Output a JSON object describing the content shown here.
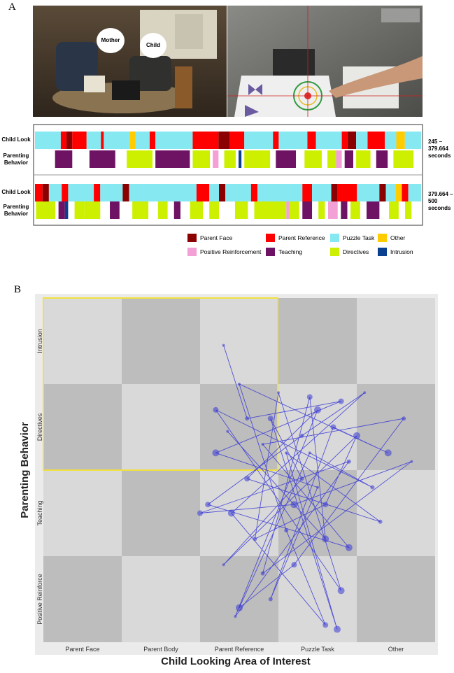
{
  "panel_a": {
    "label": "A",
    "photo": {
      "left_tags": [
        "Mother",
        "Child"
      ]
    },
    "row_labels": {
      "look": "Child Look",
      "behavior": "Parenting Behavior"
    },
    "rows": [
      {
        "range_label": "245 – 379.664 seconds",
        "start": 245,
        "end": 379.664,
        "look": [
          [
            245,
            254,
            2
          ],
          [
            254,
            256,
            1
          ],
          [
            256,
            258,
            0
          ],
          [
            258,
            263,
            1
          ],
          [
            263,
            268,
            2
          ],
          [
            268,
            269,
            1
          ],
          [
            269,
            278,
            2
          ],
          [
            278,
            280,
            3
          ],
          [
            280,
            285,
            2
          ],
          [
            285,
            287,
            1
          ],
          [
            287,
            300,
            2
          ],
          [
            300,
            309,
            1
          ],
          [
            309,
            313,
            0
          ],
          [
            313,
            318,
            1
          ],
          [
            318,
            328,
            2
          ],
          [
            328,
            330,
            1
          ],
          [
            330,
            340,
            2
          ],
          [
            340,
            343,
            1
          ],
          [
            343,
            352,
            2
          ],
          [
            352,
            354,
            1
          ],
          [
            354,
            357,
            0
          ],
          [
            357,
            361,
            2
          ],
          [
            361,
            367,
            1
          ],
          [
            367,
            371,
            2
          ],
          [
            371,
            374,
            3
          ],
          [
            374,
            379.664,
            2
          ]
        ],
        "behavior": [
          [
            252,
            258,
            5
          ],
          [
            264,
            273,
            5
          ],
          [
            277,
            286,
            6
          ],
          [
            287,
            299,
            5
          ],
          [
            300,
            306,
            6
          ],
          [
            307,
            309,
            4
          ],
          [
            311,
            315,
            6
          ],
          [
            316,
            317,
            7
          ],
          [
            318,
            327,
            6
          ],
          [
            329,
            336,
            5
          ],
          [
            339,
            345,
            6
          ],
          [
            347,
            350,
            6
          ],
          [
            350,
            352,
            4
          ],
          [
            353,
            356,
            5
          ],
          [
            357,
            362,
            6
          ],
          [
            364,
            368,
            5
          ],
          [
            370,
            377,
            6
          ]
        ]
      },
      {
        "range_label": "379.664 – 500 seconds",
        "start": 379.664,
        "end": 500,
        "look": [
          [
            379.664,
            382,
            1
          ],
          [
            382,
            384,
            0
          ],
          [
            384,
            388,
            2
          ],
          [
            388,
            390,
            1
          ],
          [
            390,
            398,
            2
          ],
          [
            398,
            400,
            1
          ],
          [
            400,
            407,
            2
          ],
          [
            407,
            409,
            0
          ],
          [
            409,
            430,
            2
          ],
          [
            430,
            434,
            1
          ],
          [
            434,
            437,
            2
          ],
          [
            437,
            439,
            0
          ],
          [
            439,
            447,
            2
          ],
          [
            447,
            449,
            1
          ],
          [
            449,
            463,
            2
          ],
          [
            463,
            466,
            1
          ],
          [
            466,
            472,
            2
          ],
          [
            472,
            474,
            0
          ],
          [
            474,
            480,
            1
          ],
          [
            480,
            487,
            2
          ],
          [
            487,
            489,
            0
          ],
          [
            489,
            492,
            2
          ],
          [
            492,
            494,
            3
          ],
          [
            494,
            496,
            1
          ],
          [
            496,
            500,
            2
          ]
        ],
        "behavior": [
          [
            380,
            386,
            6
          ],
          [
            387,
            389,
            5
          ],
          [
            389,
            390,
            7
          ],
          [
            392,
            395,
            6
          ],
          [
            395,
            400,
            6
          ],
          [
            403,
            406,
            5
          ],
          [
            410,
            415,
            6
          ],
          [
            418,
            421,
            6
          ],
          [
            423,
            425,
            5
          ],
          [
            428,
            432,
            6
          ],
          [
            434,
            437,
            6
          ],
          [
            442,
            446,
            6
          ],
          [
            448,
            454,
            6
          ],
          [
            454,
            458,
            6
          ],
          [
            458,
            459,
            4
          ],
          [
            459,
            462,
            6
          ],
          [
            463,
            466,
            5
          ],
          [
            468,
            470,
            6
          ],
          [
            471,
            474,
            4
          ],
          [
            475,
            477,
            5
          ],
          [
            478,
            481,
            6
          ],
          [
            483,
            487,
            5
          ],
          [
            490,
            493,
            6
          ],
          [
            495,
            497,
            6
          ]
        ]
      }
    ],
    "legend": [
      {
        "name": "Parent Face",
        "color": "#8b0000"
      },
      {
        "name": "Parent Reference",
        "color": "#ff0000"
      },
      {
        "name": "Puzzle Task",
        "color": "#86e9f2"
      },
      {
        "name": "Other",
        "color": "#ffcc00"
      },
      {
        "name": "Positive Reinforcement",
        "color": "#f2a0d6"
      },
      {
        "name": "Teaching",
        "color": "#6e1263"
      },
      {
        "name": "Directives",
        "color": "#ccf000"
      },
      {
        "name": "Intrusion",
        "color": "#0b3f8f"
      }
    ]
  },
  "panel_b": {
    "label": "B",
    "x_title": "Child Looking Area of Interest",
    "y_title": "Parenting Behavior",
    "x_categories": [
      "Parent Face",
      "Parent Body",
      "Parent Reference",
      "Puzzle Task",
      "Other"
    ],
    "y_categories": [
      "Positive Reinforce",
      "Teaching",
      "Directives",
      "Intrusion"
    ],
    "color": "#3a3ad6",
    "trajectory": {
      "x": [
        2.3,
        2.6,
        3.8,
        2.2,
        3.5,
        2.9,
        3.7,
        4.4,
        2.5,
        3.1,
        3.6,
        2.4,
        4.1,
        3.3,
        2.1,
        3.9,
        2.8,
        4.6,
        3.2,
        2.5,
        3.4,
        4.2,
        2.2,
        3.8,
        3.0,
        2.7,
        3.6,
        4.0,
        2.3,
        3.3,
        2.9,
        3.75,
        3.1,
        4.3,
        2.6,
        3.5,
        2.45,
        3.9,
        2.0,
        3.2,
        4.7,
        2.8,
        3.4,
        3.6,
        2.35
      ],
      "y": [
        3.45,
        2.6,
        2.8,
        2.2,
        1.8,
        0.5,
        2.5,
        2.2,
        3.0,
        1.3,
        0.2,
        1.5,
        2.9,
        2.4,
        1.6,
        1.1,
        2.3,
        2.6,
        0.9,
        0.4,
        2.2,
        1.8,
        2.7,
        0.6,
        2.9,
        1.2,
        1.6,
        2.4,
        0.9,
        1.9,
        2.6,
        0.15,
        2.2,
        1.4,
        1.9,
        2.7,
        0.3,
        2.1,
        1.5,
        1.6,
        2.1,
        0.8,
        2.85,
        1.2,
        2.45
      ]
    }
  }
}
